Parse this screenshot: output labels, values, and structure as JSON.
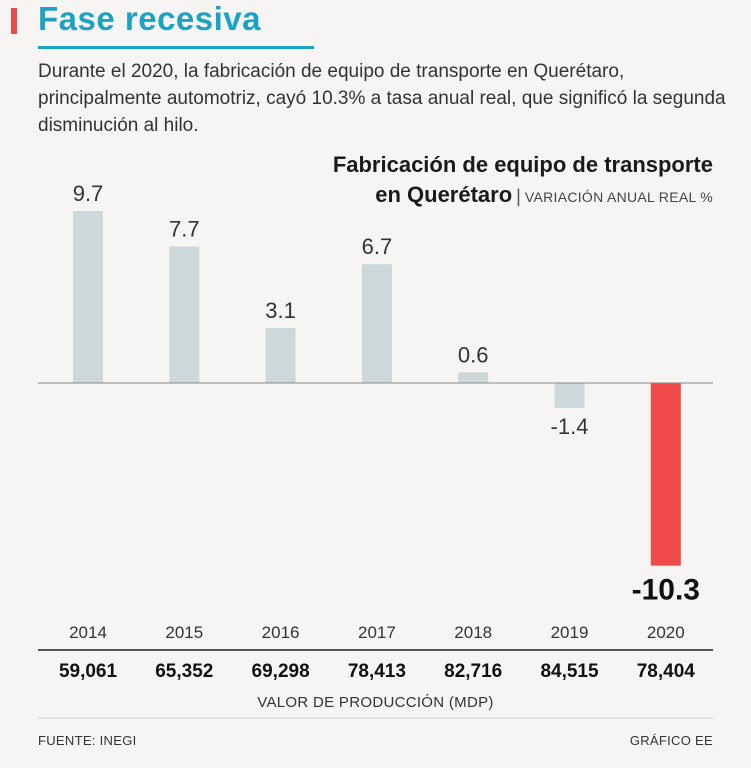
{
  "headline": "Fase recesiva",
  "intro": "Durante el 2020, la fabricación de equipo de transporte en Querétaro, principalmente automotriz, cayó 10.3% a tasa anual real, que significó la segunda disminución al hilo.",
  "chart_title_line1": "Fabricación de equipo de transporte",
  "chart_title_line2": "en Querétaro",
  "chart_unit": "VARIACIÓN ANUAL REAL %",
  "production_label": "VALOR DE PRODUCCIÓN (MDP)",
  "source": "FUENTE: INEGI",
  "credit": "GRÁFICO EE",
  "colors": {
    "bar": "#cdd8db",
    "highlight": "#ef4b4b",
    "accent": "#1aa3c4"
  },
  "chart_data": {
    "type": "bar",
    "title": "Fabricación de equipo de transporte en Querétaro",
    "ylabel": "VARIACIÓN ANUAL REAL %",
    "categories": [
      "2014",
      "2015",
      "2016",
      "2017",
      "2018",
      "2019",
      "2020"
    ],
    "values": [
      9.7,
      7.7,
      3.1,
      6.7,
      0.6,
      -1.4,
      -10.3
    ],
    "value_labels": [
      "9.7",
      "7.7",
      "3.1",
      "6.7",
      "0.6",
      "-1.4",
      "-10.3"
    ],
    "production_values": [
      "59,061",
      "65,352",
      "69,298",
      "78,413",
      "82,716",
      "84,515",
      "78,404"
    ],
    "highlight_index": 6,
    "ylim": [
      -10.3,
      9.7
    ]
  }
}
